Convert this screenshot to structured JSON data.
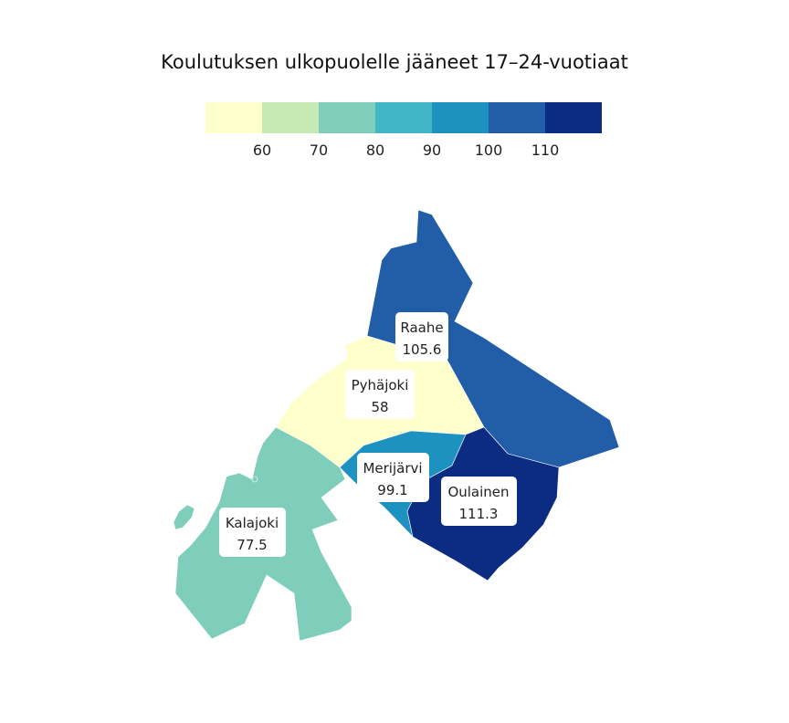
{
  "title": "Koulutuksen ulkopuolelle jääneet 17–24-vuotiaat",
  "legend": {
    "colors": [
      "#ffffcc",
      "#c7e9b4",
      "#7fcdbb",
      "#41b6c4",
      "#1d91c0",
      "#225ea8",
      "#0c2c84"
    ],
    "ticks": [
      "60",
      "70",
      "80",
      "90",
      "100",
      "110"
    ]
  },
  "regions": [
    {
      "name": "Raahe",
      "value": "105.6",
      "color": "#225ea8"
    },
    {
      "name": "Pyhäjoki",
      "value": "58",
      "color": "#ffffcc"
    },
    {
      "name": "Merijärvi",
      "value": "99.1",
      "color": "#1d91c0"
    },
    {
      "name": "Oulainen",
      "value": "111.3",
      "color": "#0c2c84"
    },
    {
      "name": "Kalajoki",
      "value": "77.5",
      "color": "#7fcdbb"
    }
  ]
}
